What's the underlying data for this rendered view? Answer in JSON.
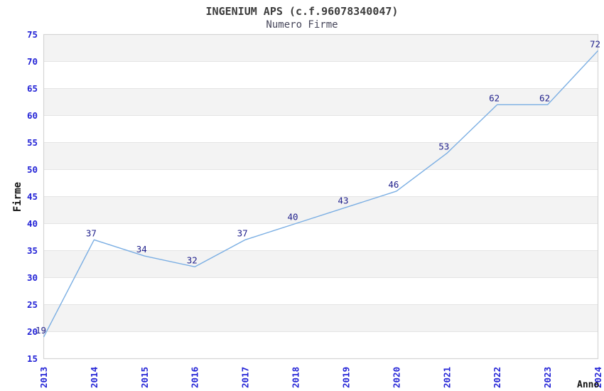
{
  "chart_data": {
    "type": "line",
    "title": "INGENIUM APS (c.f.96078340047)",
    "subtitle": "Numero Firme",
    "xlabel": "Anno",
    "ylabel": "Firme",
    "categories": [
      "2013",
      "2014",
      "2015",
      "2016",
      "2017",
      "2018",
      "2019",
      "2020",
      "2021",
      "2022",
      "2023",
      "2024"
    ],
    "values": [
      19,
      37,
      34,
      32,
      37,
      40,
      43,
      46,
      53,
      62,
      62,
      72
    ],
    "ylim": [
      15,
      75
    ],
    "yticks": [
      15,
      20,
      25,
      30,
      35,
      40,
      45,
      50,
      55,
      60,
      65,
      70,
      75
    ],
    "ytick_step": 5,
    "grid": "horizontal-bands-alternating",
    "legend": "none",
    "colors": {
      "line": "#7AAEE3",
      "data_label": "#20208C",
      "tick_label": "#2323D6",
      "band": "#F3F3F3",
      "gridline": "#E4E4E4",
      "border": "#D5D5D5",
      "title": "#3C3C3C",
      "subtitle": "#46465A",
      "axis_title": "#111111"
    }
  }
}
